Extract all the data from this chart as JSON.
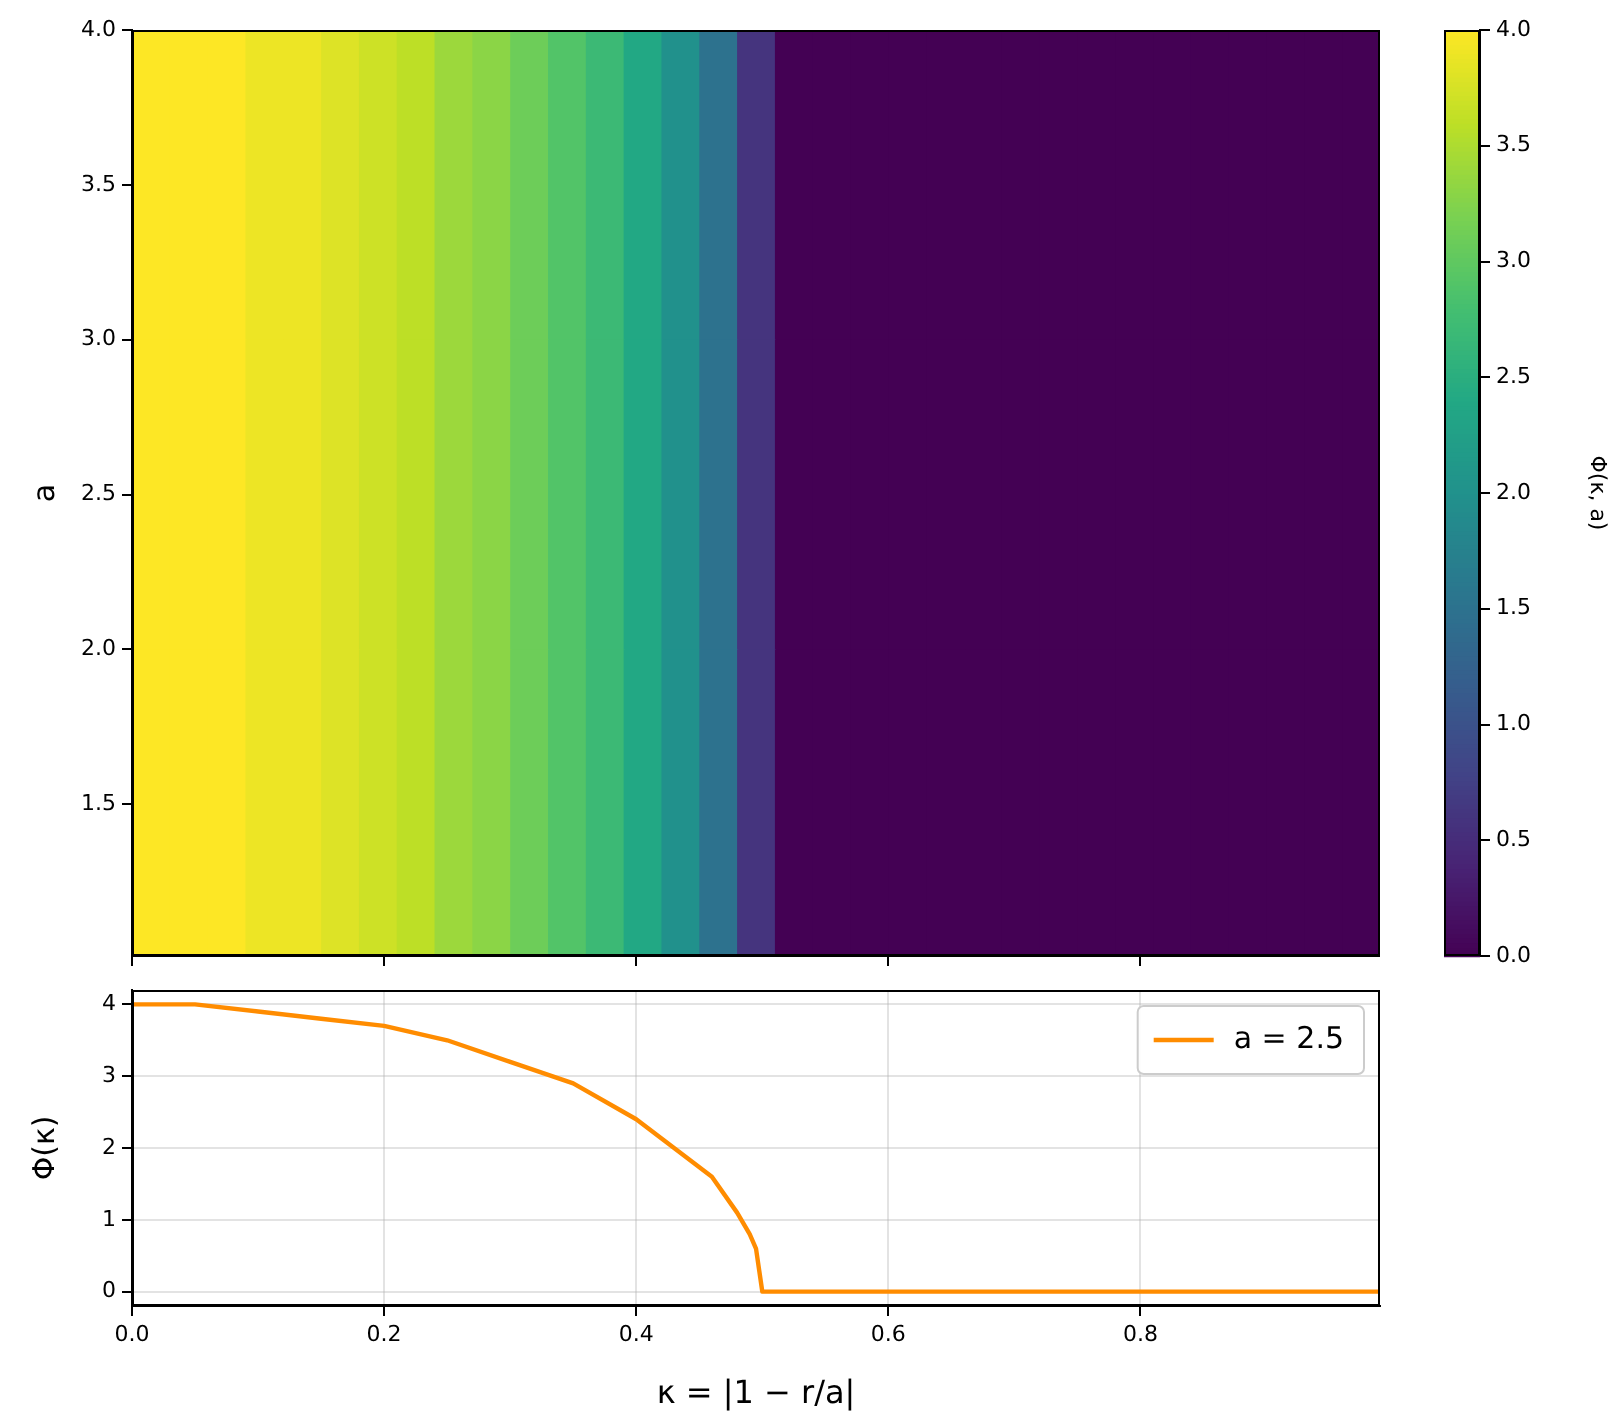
{
  "chart_data": [
    {
      "type": "heatmap",
      "ylabel": "a",
      "clabel": "Φ(κ, a)",
      "x": [
        0.015,
        0.045,
        0.075,
        0.105,
        0.135,
        0.165,
        0.195,
        0.225,
        0.255,
        0.285,
        0.315,
        0.345,
        0.375,
        0.405,
        0.435,
        0.465,
        0.495,
        0.525,
        0.555,
        0.585,
        0.615,
        0.645,
        0.675,
        0.705,
        0.735,
        0.765,
        0.795,
        0.825,
        0.855,
        0.885,
        0.915,
        0.945,
        0.975
      ],
      "y": [
        3.5,
        2.5,
        1.5
      ],
      "cells": [
        [
          4.0,
          4.0,
          4.0,
          3.9,
          3.9,
          3.8,
          3.7,
          3.6,
          3.4,
          3.3,
          3.1,
          2.9,
          2.7,
          2.4,
          2.0,
          1.5,
          0.6,
          0,
          0,
          0,
          0,
          0,
          0,
          0,
          0,
          0,
          0,
          0,
          0,
          0,
          0,
          0,
          0
        ],
        [
          4.0,
          4.0,
          4.0,
          3.9,
          3.9,
          3.8,
          3.7,
          3.6,
          3.4,
          3.3,
          3.1,
          2.9,
          2.7,
          2.4,
          2.0,
          1.5,
          0.6,
          0,
          0,
          0,
          0,
          0,
          0,
          0,
          0,
          0,
          0,
          0,
          0,
          0,
          0,
          0,
          0
        ],
        [
          4.0,
          4.0,
          4.0,
          3.9,
          3.9,
          3.8,
          3.7,
          3.6,
          3.4,
          3.3,
          3.1,
          2.9,
          2.7,
          2.4,
          2.0,
          1.5,
          0.6,
          0,
          0,
          0,
          0,
          0,
          0,
          0,
          0,
          0,
          0,
          0,
          0,
          0,
          0,
          0,
          0
        ]
      ],
      "xlim": [
        0,
        0.99
      ],
      "xticks": [
        {
          "value": 0,
          "label": null
        },
        {
          "value": 0.2,
          "label": null
        },
        {
          "value": 0.4,
          "label": null
        },
        {
          "value": 0.6,
          "label": null
        },
        {
          "value": 0.8,
          "label": null
        }
      ],
      "ylim": [
        1.01,
        4.0
      ],
      "yticks": [
        {
          "value": 1.5,
          "label": "1.5"
        },
        {
          "value": 2,
          "label": "2.0"
        },
        {
          "value": 2.5,
          "label": "2.5"
        },
        {
          "value": 3,
          "label": "3.0"
        },
        {
          "value": 3.5,
          "label": "3.5"
        },
        {
          "value": 4,
          "label": "4.0"
        }
      ],
      "clim": [
        0,
        4
      ],
      "cticks": [
        {
          "value": 0,
          "label": "0.0"
        },
        {
          "value": 0.5,
          "label": "0.5"
        },
        {
          "value": 1,
          "label": "1.0"
        },
        {
          "value": 1.5,
          "label": "1.5"
        },
        {
          "value": 2,
          "label": "2.0"
        },
        {
          "value": 2.5,
          "label": "2.5"
        },
        {
          "value": 3,
          "label": "3.0"
        },
        {
          "value": 3.5,
          "label": "3.5"
        },
        {
          "value": 4,
          "label": "4.0"
        }
      ],
      "tick_labels": "y",
      "grid": false
    },
    {
      "type": "line",
      "xlabel": "κ = |1 − r/a|",
      "ylabel": "Φ(κ)",
      "x": [
        0,
        0.05,
        0.1,
        0.15,
        0.2,
        0.25,
        0.3,
        0.35,
        0.4,
        0.43,
        0.46,
        0.48,
        0.49,
        0.495,
        0.5,
        0.99
      ],
      "series": [
        {
          "name": "a = 2.5",
          "color": "#ff8c00",
          "values": [
            4.0,
            4.0,
            3.9,
            3.8,
            3.7,
            3.5,
            3.2,
            2.9,
            2.4,
            2.0,
            1.6,
            1.1,
            0.8,
            0.6,
            0,
            0
          ]
        }
      ],
      "xlim": [
        0,
        0.99
      ],
      "xticks": [
        {
          "value": 0,
          "label": "0.0"
        },
        {
          "value": 0.2,
          "label": "0.2"
        },
        {
          "value": 0.4,
          "label": "0.4"
        },
        {
          "value": 0.6,
          "label": "0.6"
        },
        {
          "value": 0.8,
          "label": "0.8"
        }
      ],
      "ylim": [
        -0.2,
        4.2
      ],
      "yticks": [
        0,
        1,
        2,
        3,
        4
      ],
      "grid": true,
      "legend": "top right",
      "marker": "none",
      "line_style": "solid"
    }
  ]
}
